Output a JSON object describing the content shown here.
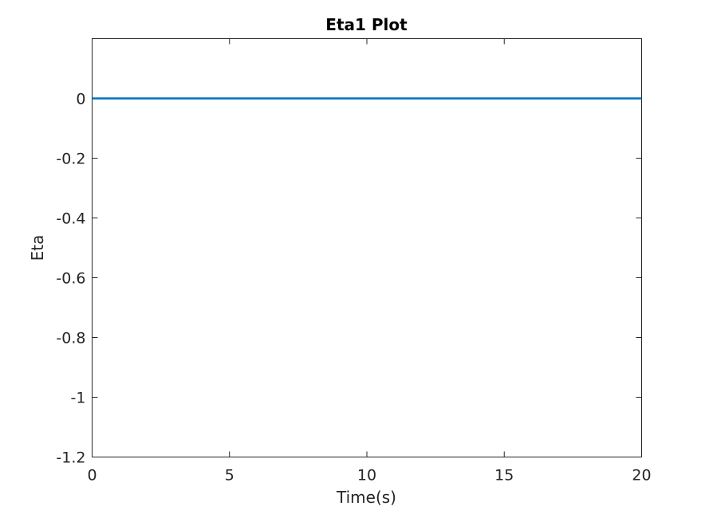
{
  "chart_data": {
    "type": "line",
    "title": "Eta1 Plot",
    "xlabel": "Time(s)",
    "ylabel": "Eta",
    "xlim": [
      0,
      20
    ],
    "ylim": [
      -1.2,
      0.2
    ],
    "xticks": [
      0,
      5,
      10,
      15,
      20
    ],
    "xtick_labels": [
      "0",
      "5",
      "10",
      "15",
      "20"
    ],
    "yticks": [
      -1.2,
      -1,
      -0.8,
      -0.6,
      -0.4,
      -0.2,
      0
    ],
    "ytick_labels": [
      "-1.2",
      "-1",
      "-0.8",
      "-0.6",
      "-0.4",
      "-0.2",
      "0"
    ],
    "grid": false,
    "series": [
      {
        "color": "#0072BD",
        "x": [
          0,
          20
        ],
        "y": [
          0,
          0
        ]
      }
    ]
  }
}
